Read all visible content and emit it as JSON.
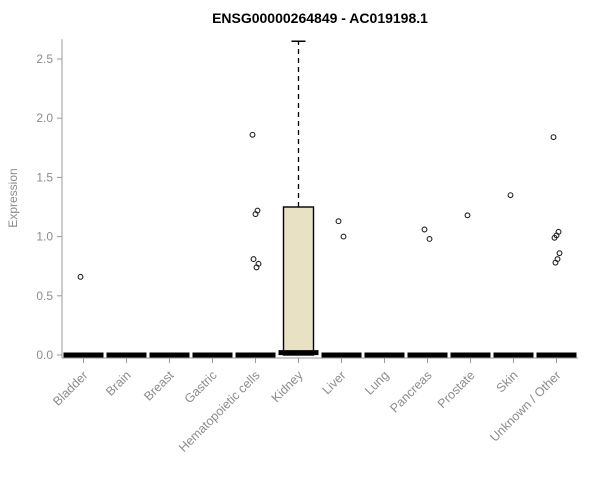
{
  "chart_data": {
    "type": "boxplot",
    "title": "ENSG00000264849 - AC019198.1",
    "ylabel": "Expression",
    "xlabel": "",
    "ylim": [
      0,
      2.65
    ],
    "yticks": [
      0,
      0.5,
      1.0,
      1.5,
      2.0,
      2.5
    ],
    "ytick_labels": [
      "0.0",
      "0.5",
      "1.0",
      "1.5",
      "2.0",
      "2.5"
    ],
    "grid": false,
    "legend": "none",
    "categories": [
      "Bladder",
      "Brain",
      "Breast",
      "Gastric",
      "Hematopoietic cells",
      "Kidney",
      "Liver",
      "Lung",
      "Pancreas",
      "Prostate",
      "Skin",
      "Unknown / Other"
    ],
    "boxes": [
      {
        "category": "Bladder",
        "q1": 0,
        "median": 0,
        "q3": 0,
        "whisker_low": 0,
        "whisker_high": 0,
        "outliers": [
          0.66
        ]
      },
      {
        "category": "Brain",
        "q1": 0,
        "median": 0,
        "q3": 0,
        "whisker_low": 0,
        "whisker_high": 0,
        "outliers": []
      },
      {
        "category": "Breast",
        "q1": 0,
        "median": 0,
        "q3": 0,
        "whisker_low": 0,
        "whisker_high": 0,
        "outliers": []
      },
      {
        "category": "Gastric",
        "q1": 0,
        "median": 0,
        "q3": 0,
        "whisker_low": 0,
        "whisker_high": 0,
        "outliers": []
      },
      {
        "category": "Hematopoietic cells",
        "q1": 0,
        "median": 0,
        "q3": 0,
        "whisker_low": 0,
        "whisker_high": 0,
        "outliers": [
          1.86,
          1.22,
          1.19,
          0.81,
          0.77,
          0.74
        ]
      },
      {
        "category": "Kidney",
        "q1": 0,
        "median": 0.02,
        "q3": 1.25,
        "whisker_low": 0,
        "whisker_high": 2.65,
        "outliers": []
      },
      {
        "category": "Liver",
        "q1": 0,
        "median": 0,
        "q3": 0,
        "whisker_low": 0,
        "whisker_high": 0,
        "outliers": [
          1.13,
          1.0
        ]
      },
      {
        "category": "Lung",
        "q1": 0,
        "median": 0,
        "q3": 0,
        "whisker_low": 0,
        "whisker_high": 0,
        "outliers": []
      },
      {
        "category": "Pancreas",
        "q1": 0,
        "median": 0,
        "q3": 0,
        "whisker_low": 0,
        "whisker_high": 0,
        "outliers": [
          1.06,
          0.98
        ]
      },
      {
        "category": "Prostate",
        "q1": 0,
        "median": 0,
        "q3": 0,
        "whisker_low": 0,
        "whisker_high": 0,
        "outliers": [
          1.18
        ]
      },
      {
        "category": "Skin",
        "q1": 0,
        "median": 0,
        "q3": 0,
        "whisker_low": 0,
        "whisker_high": 0,
        "outliers": [
          1.35
        ]
      },
      {
        "category": "Unknown / Other",
        "q1": 0,
        "median": 0,
        "q3": 0,
        "whisker_low": 0,
        "whisker_high": 0,
        "outliers": [
          1.84,
          1.04,
          1.01,
          0.99,
          0.86,
          0.81,
          0.78
        ]
      }
    ],
    "colors": {
      "box_fill": "#e8e1c4",
      "box_stroke": "#000000",
      "median": "#000000",
      "whisker": "#000000",
      "outlier_stroke": "#222222",
      "axis": "#9a9a9a",
      "tick_label": "#8c8c8c",
      "title": "#000000"
    }
  }
}
